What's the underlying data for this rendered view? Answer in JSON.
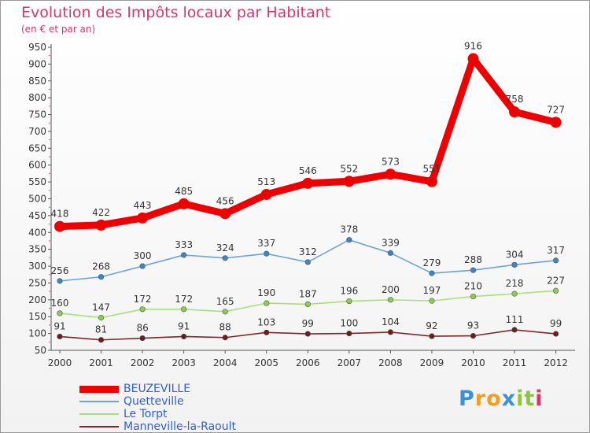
{
  "title": "Evolution des Impôts locaux par Habitant",
  "subtitle": "(en € et par an)",
  "logo": {
    "text": "Proxiti",
    "letters": [
      {
        "ch": "P",
        "color": "#3d8fd6"
      },
      {
        "ch": "r",
        "color": "#f0a020"
      },
      {
        "ch": "o",
        "color": "#f0a020"
      },
      {
        "ch": "x",
        "color": "#3d8fd6"
      },
      {
        "ch": "i",
        "color": "#8cc63f"
      },
      {
        "ch": "t",
        "color": "#8cc63f"
      },
      {
        "ch": "i",
        "color": "#d23a6b"
      }
    ]
  },
  "chart_data": {
    "type": "line",
    "title": "Evolution des Impôts locaux par Habitant",
    "subtitle": "(en € et par an)",
    "x": [
      "2000",
      "2001",
      "2002",
      "2003",
      "2004",
      "2005",
      "2006",
      "2007",
      "2008",
      "2009",
      "2010",
      "2011",
      "2012"
    ],
    "ylim": [
      50,
      950
    ],
    "yticks": [
      50,
      100,
      150,
      200,
      250,
      300,
      350,
      400,
      450,
      500,
      550,
      600,
      650,
      700,
      750,
      800,
      850,
      900,
      950
    ],
    "grid": false,
    "legend_position": "bottom-left",
    "series": [
      {
        "name": "BEUZEVILLE",
        "color": "#ee0000",
        "marker_color": "#ee0000",
        "emphasis": "thick",
        "values": [
          418,
          422,
          443,
          485,
          456,
          513,
          546,
          552,
          573,
          551,
          916,
          758,
          727
        ]
      },
      {
        "name": "Quetteville",
        "color": "#6fa3d3",
        "marker_color": "#3a86c8",
        "emphasis": "normal",
        "values": [
          256,
          268,
          300,
          333,
          324,
          337,
          312,
          378,
          339,
          279,
          288,
          304,
          317
        ]
      },
      {
        "name": "Le Torpt",
        "color": "#a8e07a",
        "marker_color": "#8ccc50",
        "emphasis": "normal",
        "values": [
          160,
          147,
          172,
          172,
          165,
          190,
          187,
          196,
          200,
          197,
          210,
          218,
          227
        ]
      },
      {
        "name": "Manneville-la-Raoult",
        "color": "#7a2a2a",
        "marker_color": "#6b1c1c",
        "emphasis": "normal",
        "values": [
          91,
          81,
          86,
          91,
          88,
          103,
          99,
          100,
          104,
          92,
          93,
          111,
          99
        ]
      }
    ]
  }
}
